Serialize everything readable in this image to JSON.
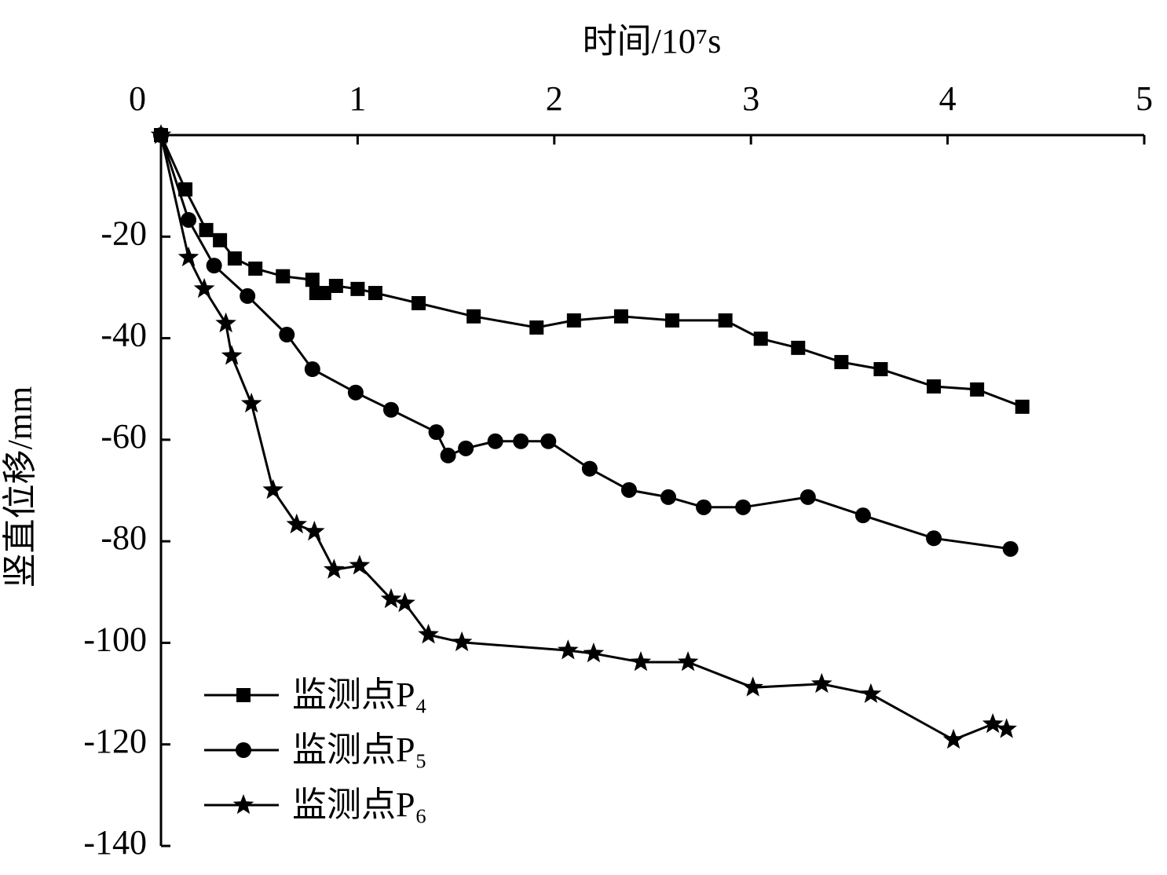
{
  "chart_data": {
    "type": "line",
    "x_label": "时间/10⁷s",
    "y_label": "竖直位移/mm",
    "x_axis_position": "top",
    "xlim": [
      0,
      5
    ],
    "xticks": [
      0,
      1,
      2,
      3,
      4,
      5
    ],
    "ylim": [
      -140,
      0
    ],
    "yticks": [
      0,
      -20,
      -40,
      -60,
      -80,
      -100,
      -120,
      -140
    ],
    "legend": "lower-left",
    "series": [
      {
        "name": "监测点P₄",
        "color": "#000000",
        "marker": "square",
        "x": [
          0,
          0.124,
          0.23,
          0.3,
          0.375,
          0.48,
          0.62,
          0.77,
          0.79,
          0.83,
          0.89,
          1.0,
          1.09,
          1.31,
          1.59,
          1.91,
          2.1,
          2.34,
          2.6,
          2.87,
          3.05,
          3.24,
          3.46,
          3.66,
          3.93,
          4.15,
          4.38
        ],
        "values": [
          0,
          -10.7,
          -18.7,
          -20.7,
          -24.3,
          -26.3,
          -27.8,
          -28.5,
          -31.1,
          -31.1,
          -29.7,
          -30.3,
          -31.1,
          -33.1,
          -35.7,
          -37.9,
          -36.5,
          -35.7,
          -36.5,
          -36.5,
          -40.1,
          -41.9,
          -44.7,
          -46.1,
          -49.5,
          -50.1,
          -53.5
        ]
      },
      {
        "name": "监测点P₅",
        "color": "#000000",
        "marker": "circle",
        "x": [
          0,
          0.14,
          0.27,
          0.44,
          0.64,
          0.77,
          0.99,
          1.17,
          1.4,
          1.46,
          1.55,
          1.7,
          1.83,
          1.97,
          2.18,
          2.38,
          2.58,
          2.76,
          2.96,
          3.29,
          3.57,
          3.93,
          4.32
        ],
        "values": [
          0,
          -16.7,
          -25.7,
          -31.7,
          -39.3,
          -46.1,
          -50.7,
          -54.1,
          -58.5,
          -63.1,
          -61.7,
          -60.3,
          -60.3,
          -60.3,
          -65.7,
          -69.9,
          -71.3,
          -73.3,
          -73.3,
          -71.3,
          -74.9,
          -79.4,
          -81.5
        ]
      },
      {
        "name": "监测点P₆",
        "color": "#000000",
        "marker": "star",
        "x": [
          0,
          0.14,
          0.22,
          0.33,
          0.36,
          0.46,
          0.57,
          0.69,
          0.78,
          0.88,
          1.01,
          1.17,
          1.24,
          1.36,
          1.53,
          2.07,
          2.2,
          2.44,
          2.68,
          3.01,
          3.36,
          3.61,
          4.03,
          4.23,
          4.3
        ],
        "values": [
          0,
          -24.1,
          -30.3,
          -37.1,
          -43.5,
          -52.9,
          -69.9,
          -76.7,
          -78.1,
          -85.6,
          -84.8,
          -91.4,
          -92.2,
          -98.4,
          -99.9,
          -101.5,
          -102.1,
          -103.8,
          -103.8,
          -108.8,
          -108.1,
          -110.1,
          -119.1,
          -116.0,
          -117.0
        ]
      }
    ]
  }
}
